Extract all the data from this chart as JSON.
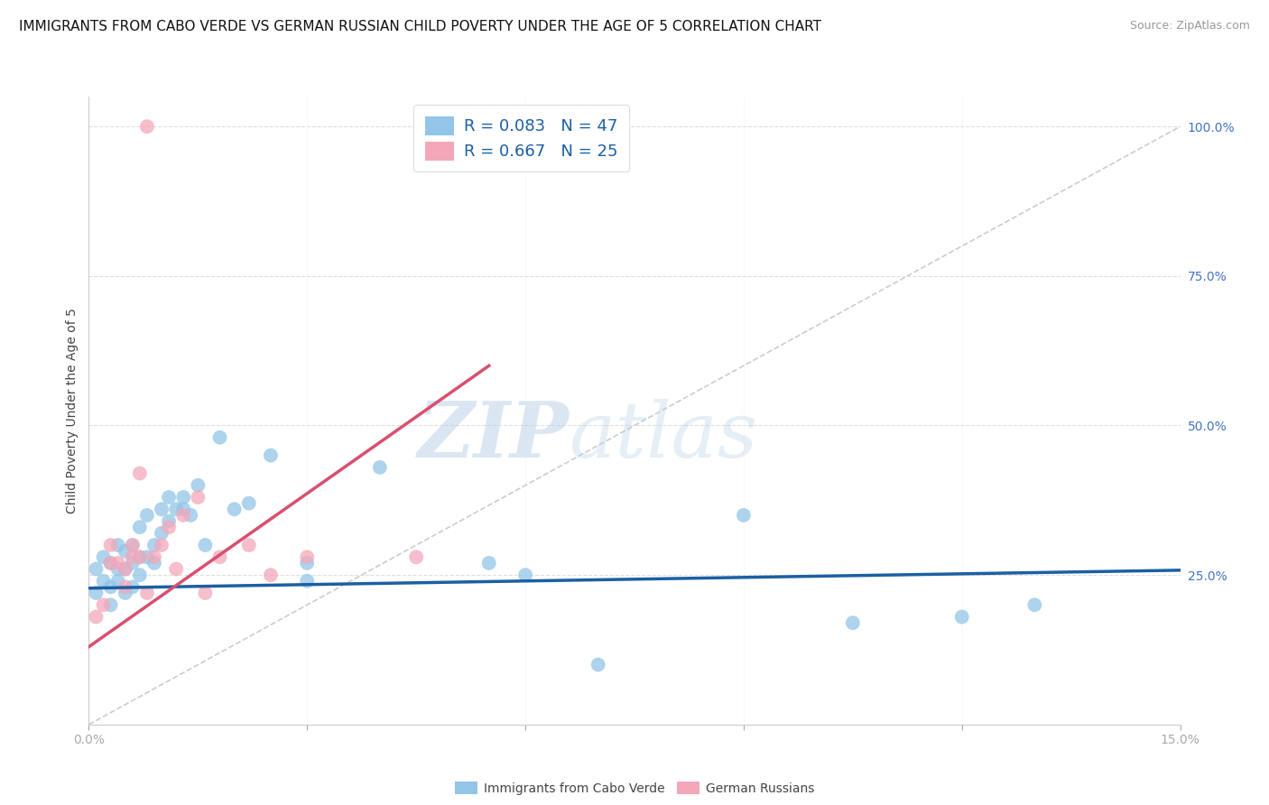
{
  "title": "IMMIGRANTS FROM CABO VERDE VS GERMAN RUSSIAN CHILD POVERTY UNDER THE AGE OF 5 CORRELATION CHART",
  "source": "Source: ZipAtlas.com",
  "ylabel": "Child Poverty Under the Age of 5",
  "y_ticks": [
    0.0,
    0.25,
    0.5,
    0.75,
    1.0
  ],
  "y_tick_labels": [
    "",
    "25.0%",
    "50.0%",
    "75.0%",
    "100.0%"
  ],
  "x_ticks": [
    0.0,
    0.03,
    0.06,
    0.09,
    0.12,
    0.15
  ],
  "x_tick_labels": [
    "0.0%",
    "",
    "",
    "",
    "",
    "15.0%"
  ],
  "xmin": 0.0,
  "xmax": 0.15,
  "ymin": 0.0,
  "ymax": 1.05,
  "legend1_label": "R = 0.083   N = 47",
  "legend2_label": "R = 0.667   N = 25",
  "legend_bottom_label1": "Immigrants from Cabo Verde",
  "legend_bottom_label2": "German Russians",
  "blue_color": "#92c5e8",
  "pink_color": "#f4a7b9",
  "trend_blue": "#1c5fa3",
  "trend_pink": "#d94f70",
  "ref_line_color": "#cccccc",
  "blue_scatter_x": [
    0.001,
    0.001,
    0.002,
    0.002,
    0.003,
    0.003,
    0.003,
    0.004,
    0.004,
    0.004,
    0.005,
    0.005,
    0.005,
    0.006,
    0.006,
    0.006,
    0.007,
    0.007,
    0.007,
    0.008,
    0.008,
    0.009,
    0.009,
    0.01,
    0.01,
    0.011,
    0.011,
    0.012,
    0.013,
    0.013,
    0.014,
    0.015,
    0.016,
    0.018,
    0.02,
    0.022,
    0.025,
    0.03,
    0.03,
    0.04,
    0.055,
    0.06,
    0.07,
    0.09,
    0.105,
    0.12,
    0.13
  ],
  "blue_scatter_y": [
    0.22,
    0.26,
    0.24,
    0.28,
    0.2,
    0.23,
    0.27,
    0.24,
    0.26,
    0.3,
    0.22,
    0.26,
    0.29,
    0.23,
    0.27,
    0.3,
    0.25,
    0.28,
    0.33,
    0.28,
    0.35,
    0.27,
    0.3,
    0.32,
    0.36,
    0.34,
    0.38,
    0.36,
    0.36,
    0.38,
    0.35,
    0.4,
    0.3,
    0.48,
    0.36,
    0.37,
    0.45,
    0.27,
    0.24,
    0.43,
    0.27,
    0.25,
    0.1,
    0.35,
    0.17,
    0.18,
    0.2
  ],
  "pink_scatter_x": [
    0.001,
    0.002,
    0.003,
    0.003,
    0.004,
    0.005,
    0.005,
    0.006,
    0.006,
    0.007,
    0.007,
    0.008,
    0.009,
    0.01,
    0.011,
    0.012,
    0.013,
    0.015,
    0.016,
    0.018,
    0.022,
    0.025,
    0.03,
    0.045,
    0.008
  ],
  "pink_scatter_y": [
    0.18,
    0.2,
    0.27,
    0.3,
    0.27,
    0.23,
    0.26,
    0.28,
    0.3,
    0.28,
    0.42,
    0.22,
    0.28,
    0.3,
    0.33,
    0.26,
    0.35,
    0.38,
    0.22,
    0.28,
    0.3,
    0.25,
    0.28,
    0.28,
    1.0
  ],
  "blue_trend_x": [
    0.0,
    0.15
  ],
  "blue_trend_y": [
    0.228,
    0.258
  ],
  "pink_trend_x": [
    0.0,
    0.055
  ],
  "pink_trend_y": [
    0.13,
    0.6
  ],
  "ref_line_x": [
    0.0,
    0.15
  ],
  "ref_line_y": [
    0.0,
    1.0
  ],
  "watermark_zip": "ZIP",
  "watermark_atlas": "atlas",
  "grid_color": "#dedede",
  "title_fontsize": 11,
  "axis_label_fontsize": 10,
  "tick_fontsize": 10,
  "source_fontsize": 9,
  "legend_fontsize": 13
}
